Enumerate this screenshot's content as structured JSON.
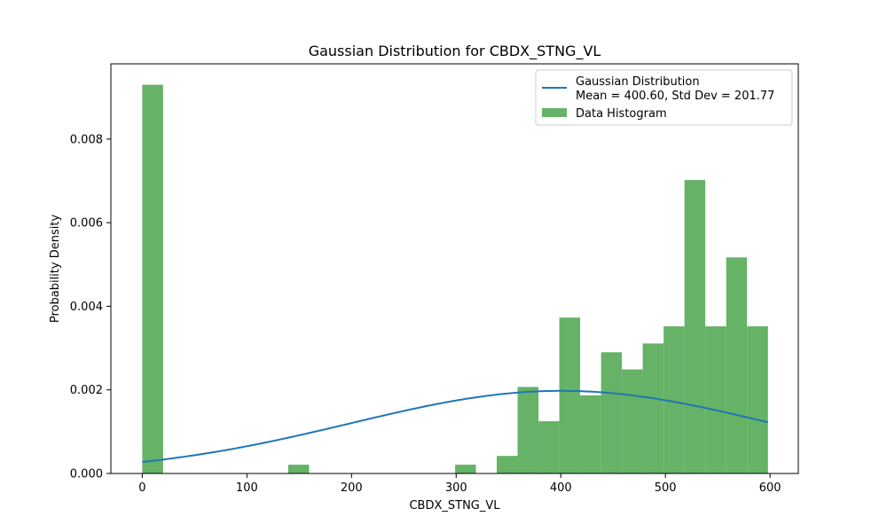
{
  "chart_data": {
    "type": "bar",
    "title": "Gaussian Distribution for CBDX_STNG_VL",
    "xlabel": "CBDX_STNG_VL",
    "ylabel": "Probability Density",
    "xlim": [
      -30,
      627
    ],
    "ylim": [
      0,
      0.0098
    ],
    "x_ticks": [
      0,
      100,
      200,
      300,
      400,
      500,
      600
    ],
    "x_tick_labels": [
      "0",
      "100",
      "200",
      "300",
      "400",
      "500",
      "600"
    ],
    "y_ticks": [
      0,
      0.002,
      0.004,
      0.006,
      0.008
    ],
    "y_tick_labels": [
      "0.000",
      "0.002",
      "0.004",
      "0.006",
      "0.008"
    ],
    "grid": false,
    "legend_position": "top-right",
    "colors": {
      "bars": "#66b266",
      "curve": "#1f77b4"
    },
    "series": [
      {
        "name": "Gaussian Distribution",
        "detail": "Mean = 400.60, Std Dev = 201.77",
        "type": "line",
        "mean": 400.6,
        "std": 201.77,
        "x_range": [
          0,
          598
        ]
      },
      {
        "name": "Data Histogram",
        "type": "histogram",
        "bins": [
          {
            "x0": 0,
            "x1": 19.93,
            "value": 0.0093
          },
          {
            "x0": 139.5,
            "x1": 159.4,
            "value": 0.00021
          },
          {
            "x0": 299.0,
            "x1": 318.9,
            "value": 0.00021
          },
          {
            "x0": 338.8,
            "x1": 358.7,
            "value": 0.00042
          },
          {
            "x0": 358.7,
            "x1": 378.7,
            "value": 0.00207
          },
          {
            "x0": 378.7,
            "x1": 398.6,
            "value": 0.00125
          },
          {
            "x0": 398.6,
            "x1": 418.5,
            "value": 0.00373
          },
          {
            "x0": 418.5,
            "x1": 438.5,
            "value": 0.00187
          },
          {
            "x0": 438.5,
            "x1": 458.4,
            "value": 0.0029
          },
          {
            "x0": 458.4,
            "x1": 478.3,
            "value": 0.00249
          },
          {
            "x0": 478.3,
            "x1": 498.3,
            "value": 0.00311
          },
          {
            "x0": 498.3,
            "x1": 518.2,
            "value": 0.00352
          },
          {
            "x0": 518.2,
            "x1": 538.1,
            "value": 0.00702
          },
          {
            "x0": 538.1,
            "x1": 558.1,
            "value": 0.00352
          },
          {
            "x0": 558.1,
            "x1": 578.0,
            "value": 0.00517
          },
          {
            "x0": 578.0,
            "x1": 598.0,
            "value": 0.00352
          }
        ]
      }
    ]
  }
}
